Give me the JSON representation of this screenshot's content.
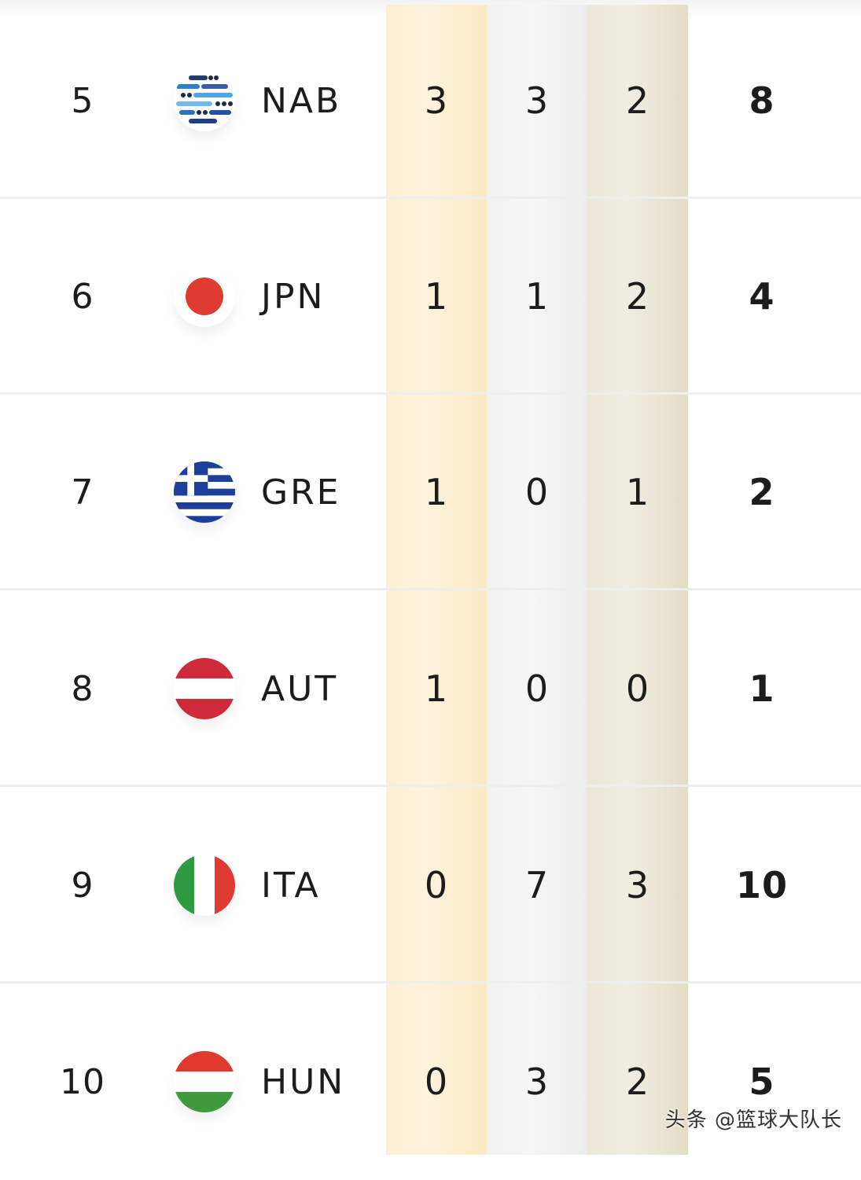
{
  "medal_table": {
    "rows": [
      {
        "rank": "5",
        "code": "NAB",
        "flag": "nab-logo-icon",
        "gold": "3",
        "silver": "3",
        "bronze": "2",
        "total": "8"
      },
      {
        "rank": "6",
        "code": "JPN",
        "flag": "japan-flag-icon",
        "gold": "1",
        "silver": "1",
        "bronze": "2",
        "total": "4"
      },
      {
        "rank": "7",
        "code": "GRE",
        "flag": "greece-flag-icon",
        "gold": "1",
        "silver": "0",
        "bronze": "1",
        "total": "2"
      },
      {
        "rank": "8",
        "code": "AUT",
        "flag": "austria-flag-icon",
        "gold": "1",
        "silver": "0",
        "bronze": "0",
        "total": "1"
      },
      {
        "rank": "9",
        "code": "ITA",
        "flag": "italy-flag-icon",
        "gold": "0",
        "silver": "7",
        "bronze": "3",
        "total": "10"
      },
      {
        "rank": "10",
        "code": "HUN",
        "flag": "hungary-flag-icon",
        "gold": "0",
        "silver": "3",
        "bronze": "2",
        "total": "5"
      }
    ]
  },
  "watermark": "头条 @篮球大队长",
  "colors": {
    "gold_column": "#fcf1d6",
    "silver_column": "#f3f3f3",
    "bronze_column": "#ebe5d4",
    "text": "#1c1c1c"
  }
}
